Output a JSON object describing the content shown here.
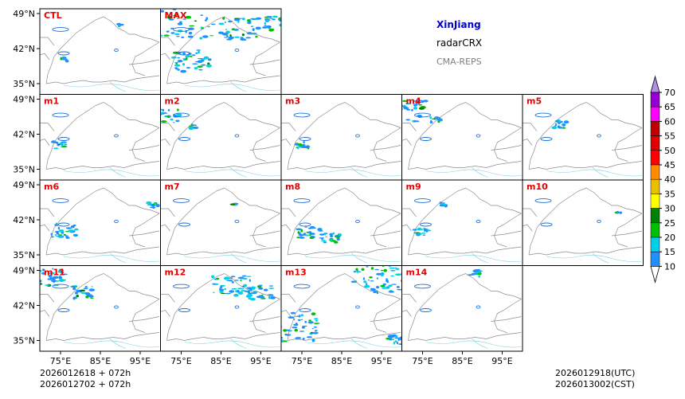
{
  "title": {
    "region": "XinJiang",
    "variable": "radarCRX",
    "source": "CMA-REPS"
  },
  "panels": [
    {
      "label": "CTL"
    },
    {
      "label": "MAX"
    },
    {
      "label": "m1"
    },
    {
      "label": "m2"
    },
    {
      "label": "m3"
    },
    {
      "label": "m4"
    },
    {
      "label": "m5"
    },
    {
      "label": "m6"
    },
    {
      "label": "m7"
    },
    {
      "label": "m8"
    },
    {
      "label": "m9"
    },
    {
      "label": "m10"
    },
    {
      "label": "m11"
    },
    {
      "label": "m12"
    },
    {
      "label": "m13"
    },
    {
      "label": "m14"
    }
  ],
  "axes": {
    "lat_ticks": [
      "49°N",
      "42°N",
      "35°N"
    ],
    "lon_ticks": [
      "75°E",
      "85°E",
      "95°E"
    ]
  },
  "colorbar": {
    "labels": [
      "10",
      "15",
      "20",
      "25",
      "30",
      "35",
      "40",
      "45",
      "50",
      "55",
      "60",
      "65",
      "70"
    ],
    "colors": [
      "#1e90ff",
      "#00d0e8",
      "#00c000",
      "#008000",
      "#ffff00",
      "#e8c000",
      "#ff8c00",
      "#ff0000",
      "#e00000",
      "#c00000",
      "#ff00ff",
      "#9400d3",
      "#b090e0"
    ]
  },
  "times": {
    "init_utc": "2026012618  +  072h",
    "init_cst": "2026012702  +  072h",
    "valid_utc": "2026012918(UTC)",
    "valid_cst": "2026013002(CST)"
  }
}
